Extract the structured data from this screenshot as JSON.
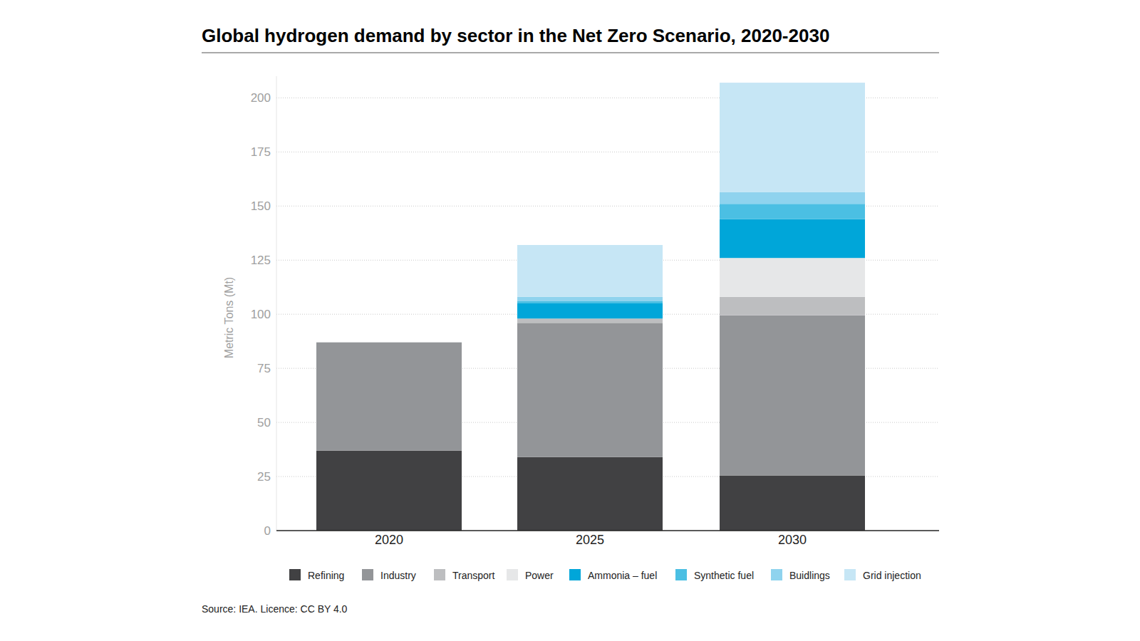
{
  "chart_data": {
    "type": "bar",
    "stacked": true,
    "title": "Global hydrogen demand by sector in the Net Zero Scenario, 2020-2030",
    "y_label": "Metric Tons (Mt)",
    "source": "Source: IEA. Licence: CC BY 4.0",
    "categories": [
      "2020",
      "2025",
      "2030"
    ],
    "series": [
      {
        "name": "Refining",
        "color": "#414143",
        "values": [
          37,
          34,
          25.5
        ]
      },
      {
        "name": "Industry",
        "color": "#939598",
        "values": [
          50,
          62,
          74
        ]
      },
      {
        "name": "Transport",
        "color": "#bdbec0",
        "values": [
          0,
          2,
          8.5
        ]
      },
      {
        "name": "Power",
        "color": "#e6e7e8",
        "values": [
          0,
          0,
          18
        ]
      },
      {
        "name": "Ammonia – fuel",
        "color": "#00a6d9",
        "values": [
          0,
          7,
          18
        ]
      },
      {
        "name": "Synthetic fuel",
        "color": "#4bbfe3",
        "values": [
          0,
          1,
          7
        ]
      },
      {
        "name": "Buidlings",
        "color": "#8fd3ee",
        "values": [
          0,
          2,
          5.5
        ]
      },
      {
        "name": "Grid injection",
        "color": "#c6e6f5",
        "values": [
          0,
          24,
          50.5
        ]
      }
    ],
    "ylim": [
      0,
      210
    ],
    "yticks": [
      0,
      25,
      50,
      75,
      100,
      125,
      150,
      175,
      200
    ],
    "grid": true,
    "legend": "bottom"
  }
}
